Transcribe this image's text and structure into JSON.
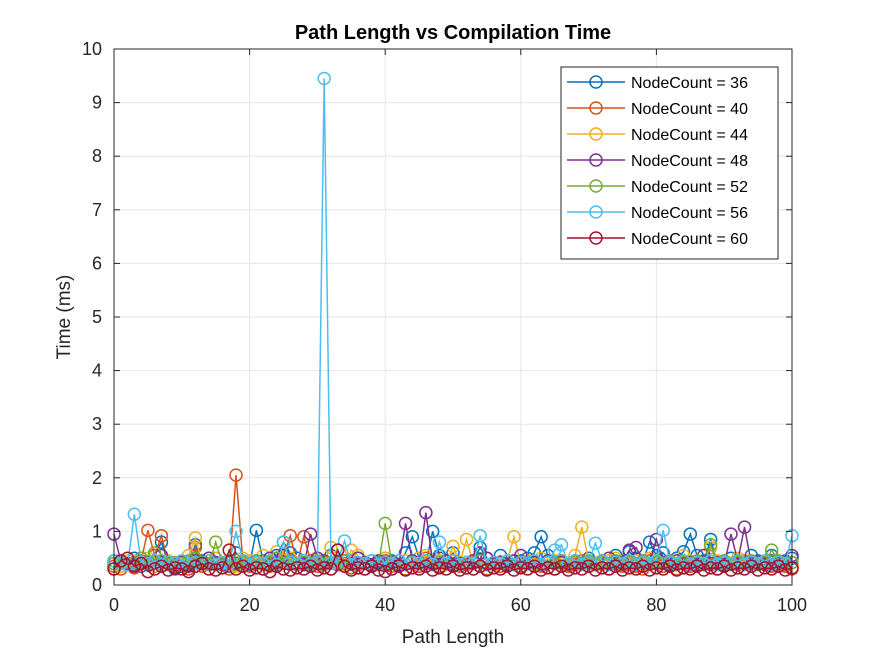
{
  "chart_data": {
    "type": "line",
    "title": "Path Length vs Compilation Time",
    "xlabel": "Path Length",
    "ylabel": "Time (ms)",
    "xlim": [
      0,
      100
    ],
    "ylim": [
      0,
      10
    ],
    "xticks": [
      "0",
      "20",
      "40",
      "60",
      "80",
      "100"
    ],
    "yticks": [
      "0",
      "1",
      "2",
      "3",
      "4",
      "5",
      "6",
      "7",
      "8",
      "9",
      "10"
    ],
    "grid": true,
    "legend_position": "top-right",
    "marker": "circle-open",
    "series": [
      {
        "name": "NodeCount = 36",
        "color": "#0072BD",
        "values": [
          0.45,
          0.4,
          0.38,
          0.5,
          0.35,
          0.42,
          0.55,
          0.8,
          0.4,
          0.3,
          0.35,
          0.42,
          0.75,
          0.45,
          0.38,
          0.5,
          0.4,
          0.35,
          0.6,
          0.45,
          0.38,
          1.02,
          0.45,
          0.4,
          0.55,
          0.8,
          0.6,
          0.5,
          0.4,
          0.45,
          0.5,
          0.42,
          0.55,
          0.4,
          0.38,
          0.45,
          0.5,
          0.4,
          0.35,
          0.42,
          0.5,
          0.45,
          0.38,
          0.6,
          0.9,
          0.5,
          0.4,
          1.0,
          0.55,
          0.45,
          0.6,
          0.4,
          0.38,
          0.45,
          0.7,
          0.5,
          0.42,
          0.55,
          0.4,
          0.38,
          0.45,
          0.5,
          0.6,
          0.9,
          0.55,
          0.42,
          0.45,
          0.4,
          0.38,
          0.45,
          0.5,
          0.4,
          0.42,
          0.38,
          0.55,
          0.45,
          0.62,
          0.5,
          0.45,
          0.8,
          0.55,
          0.6,
          0.45,
          0.5,
          0.62,
          0.95,
          0.55,
          0.45,
          0.85,
          0.4,
          0.45,
          0.5,
          0.38,
          0.42,
          0.55,
          0.45,
          0.4,
          0.55,
          0.42,
          0.45,
          0.5
        ]
      },
      {
        "name": "NodeCount = 40",
        "color": "#D95319",
        "values": [
          0.35,
          0.3,
          0.4,
          0.32,
          0.45,
          1.02,
          0.55,
          0.92,
          0.4,
          0.35,
          0.42,
          0.3,
          0.7,
          0.35,
          0.5,
          0.4,
          0.38,
          0.3,
          2.05,
          0.45,
          0.35,
          0.4,
          0.3,
          0.35,
          0.42,
          0.55,
          0.92,
          0.4,
          0.9,
          0.45,
          0.35,
          0.4,
          0.3,
          0.65,
          0.4,
          0.32,
          0.38,
          0.3,
          0.35,
          0.4,
          0.45,
          0.35,
          0.38,
          0.3,
          0.42,
          0.35,
          0.5,
          0.4,
          0.35,
          0.45,
          0.4,
          0.35,
          0.38,
          0.42,
          0.35,
          0.3,
          0.4,
          0.35,
          0.38,
          0.45,
          0.35,
          0.4,
          0.38,
          0.35,
          0.42,
          0.3,
          0.4,
          0.35,
          0.38,
          0.45,
          0.35,
          0.4,
          0.38,
          0.3,
          0.42,
          0.35,
          0.4,
          0.35,
          0.3,
          0.45,
          0.4,
          0.35,
          0.38,
          0.3,
          0.45,
          0.35,
          0.4,
          0.42,
          0.38,
          0.3,
          0.35,
          0.4,
          0.38,
          0.45,
          0.35,
          0.42,
          0.38,
          0.35,
          0.4,
          0.35,
          0.3
        ]
      },
      {
        "name": "NodeCount = 44",
        "color": "#EDB120",
        "values": [
          0.4,
          0.35,
          0.45,
          0.38,
          0.42,
          0.5,
          0.35,
          0.4,
          0.45,
          0.38,
          0.42,
          0.55,
          0.88,
          0.4,
          0.45,
          0.5,
          0.38,
          0.42,
          0.35,
          0.5,
          0.45,
          0.4,
          0.55,
          0.38,
          0.62,
          0.45,
          0.5,
          0.4,
          0.38,
          0.42,
          0.5,
          0.45,
          0.7,
          0.4,
          0.38,
          0.65,
          0.55,
          0.42,
          0.38,
          0.45,
          0.5,
          0.4,
          0.38,
          0.45,
          0.42,
          0.5,
          0.55,
          0.4,
          0.45,
          0.38,
          0.72,
          0.42,
          0.85,
          0.4,
          0.45,
          0.5,
          0.38,
          0.42,
          0.45,
          0.9,
          0.4,
          0.45,
          0.38,
          0.5,
          0.42,
          0.45,
          0.4,
          0.38,
          0.55,
          1.08,
          0.45,
          0.4,
          0.38,
          0.45,
          0.5,
          0.42,
          0.4,
          0.45,
          0.38,
          0.5,
          0.45,
          0.42,
          0.4,
          0.38,
          0.55,
          0.45,
          0.4,
          0.38,
          0.7,
          0.45,
          0.42,
          0.4,
          0.5,
          0.38,
          0.45,
          0.4,
          0.42,
          0.38,
          0.45,
          0.4,
          0.42
        ]
      },
      {
        "name": "NodeCount = 48",
        "color": "#7E2F8E",
        "values": [
          0.95,
          0.45,
          0.4,
          0.38,
          0.5,
          0.42,
          0.45,
          0.55,
          0.4,
          0.38,
          0.42,
          0.35,
          0.45,
          0.4,
          0.5,
          0.42,
          0.38,
          0.45,
          0.4,
          0.42,
          0.38,
          0.45,
          0.4,
          0.5,
          0.42,
          0.55,
          0.45,
          0.4,
          0.38,
          0.95,
          0.5,
          0.45,
          0.42,
          0.38,
          0.45,
          0.4,
          0.5,
          0.42,
          0.38,
          0.45,
          0.4,
          0.42,
          0.38,
          1.15,
          0.45,
          0.4,
          1.35,
          0.42,
          0.5,
          0.45,
          0.38,
          0.4,
          0.42,
          0.45,
          0.6,
          0.5,
          0.4,
          0.42,
          0.38,
          0.45,
          0.55,
          0.4,
          0.42,
          0.38,
          0.45,
          0.4,
          0.42,
          0.38,
          0.45,
          0.4,
          0.42,
          0.38,
          0.45,
          0.5,
          0.4,
          0.42,
          0.65,
          0.7,
          0.45,
          0.4,
          0.85,
          0.42,
          0.38,
          0.45,
          0.4,
          0.42,
          0.38,
          0.55,
          0.4,
          0.42,
          0.38,
          0.95,
          0.45,
          1.08,
          0.4,
          0.42,
          0.38,
          0.45,
          0.4,
          0.42,
          0.55
        ]
      },
      {
        "name": "NodeCount = 52",
        "color": "#77AC30",
        "values": [
          0.4,
          0.45,
          0.38,
          0.42,
          0.5,
          0.4,
          0.6,
          0.45,
          0.38,
          0.42,
          0.4,
          0.45,
          0.5,
          0.42,
          0.38,
          0.8,
          0.4,
          0.45,
          0.38,
          0.42,
          0.4,
          0.45,
          0.38,
          0.42,
          0.5,
          0.4,
          0.45,
          0.38,
          0.42,
          0.4,
          0.45,
          0.38,
          0.42,
          0.4,
          0.45,
          0.38,
          0.42,
          0.4,
          0.45,
          0.38,
          1.15,
          0.4,
          0.45,
          0.38,
          0.42,
          0.4,
          0.45,
          0.38,
          0.42,
          0.4,
          0.45,
          0.38,
          0.42,
          0.4,
          0.45,
          0.38,
          0.42,
          0.4,
          0.45,
          0.38,
          0.42,
          0.4,
          0.45,
          0.38,
          0.42,
          0.4,
          0.45,
          0.38,
          0.42,
          0.4,
          0.45,
          0.38,
          0.42,
          0.4,
          0.45,
          0.38,
          0.42,
          0.4,
          0.45,
          0.38,
          0.42,
          0.4,
          0.45,
          0.38,
          0.42,
          0.4,
          0.45,
          0.38,
          0.75,
          0.4,
          0.45,
          0.38,
          0.42,
          0.4,
          0.45,
          0.38,
          0.42,
          0.65,
          0.45,
          0.38,
          0.42
        ]
      },
      {
        "name": "NodeCount = 56",
        "color": "#4DBEEE",
        "values": [
          0.45,
          0.4,
          0.38,
          1.32,
          0.42,
          0.4,
          0.45,
          0.38,
          0.42,
          0.4,
          0.45,
          0.38,
          0.42,
          0.4,
          0.45,
          0.38,
          0.42,
          0.4,
          1.0,
          0.45,
          0.38,
          0.42,
          0.4,
          0.45,
          0.38,
          0.8,
          0.42,
          0.4,
          0.45,
          0.38,
          0.42,
          9.45,
          0.4,
          0.45,
          0.82,
          0.38,
          0.42,
          0.4,
          0.45,
          0.38,
          0.42,
          0.4,
          0.45,
          0.38,
          0.42,
          0.4,
          0.45,
          0.38,
          0.8,
          0.4,
          0.45,
          0.38,
          0.42,
          0.4,
          0.92,
          0.38,
          0.42,
          0.4,
          0.45,
          0.38,
          0.42,
          0.4,
          0.45,
          0.38,
          0.42,
          0.65,
          0.75,
          0.4,
          0.45,
          0.38,
          0.42,
          0.78,
          0.45,
          0.38,
          0.42,
          0.4,
          0.45,
          0.38,
          0.42,
          0.4,
          0.45,
          1.02,
          0.42,
          0.4,
          0.45,
          0.38,
          0.42,
          0.4,
          0.45,
          0.38,
          0.42,
          0.4,
          0.45,
          0.38,
          0.42,
          0.4,
          0.45,
          0.38,
          0.42,
          0.4,
          0.92
        ]
      },
      {
        "name": "NodeCount = 60",
        "color": "#A2142F",
        "values": [
          0.3,
          0.45,
          0.5,
          0.35,
          0.4,
          0.25,
          0.3,
          0.35,
          0.28,
          0.32,
          0.3,
          0.25,
          0.35,
          0.4,
          0.3,
          0.28,
          0.32,
          0.65,
          0.3,
          0.35,
          0.28,
          0.32,
          0.3,
          0.25,
          0.35,
          0.3,
          0.28,
          0.32,
          0.3,
          0.35,
          0.28,
          0.32,
          0.3,
          0.65,
          0.35,
          0.28,
          0.32,
          0.3,
          0.35,
          0.28,
          0.25,
          0.3,
          0.35,
          0.28,
          0.32,
          0.3,
          0.35,
          0.28,
          0.32,
          0.3,
          0.35,
          0.28,
          0.32,
          0.3,
          0.35,
          0.28,
          0.32,
          0.3,
          0.35,
          0.28,
          0.32,
          0.3,
          0.35,
          0.28,
          0.32,
          0.3,
          0.35,
          0.28,
          0.32,
          0.3,
          0.35,
          0.28,
          0.32,
          0.3,
          0.35,
          0.28,
          0.32,
          0.3,
          0.35,
          0.28,
          0.32,
          0.3,
          0.35,
          0.28,
          0.32,
          0.3,
          0.35,
          0.28,
          0.32,
          0.3,
          0.35,
          0.28,
          0.32,
          0.3,
          0.35,
          0.28,
          0.32,
          0.3,
          0.35,
          0.28,
          0.32
        ]
      }
    ]
  }
}
